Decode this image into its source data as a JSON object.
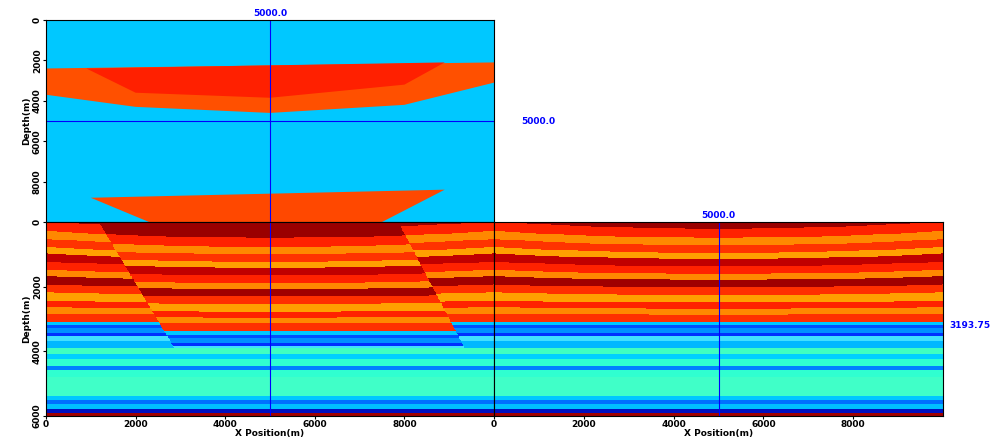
{
  "chart_data": {
    "type": "cube",
    "layers": {
      "tops": [
        -400,
        0,
        300,
        550,
        800,
        1000,
        1250,
        1500,
        1700,
        1950,
        2200,
        2450,
        2650,
        2850,
        3100,
        3200,
        3300,
        3450,
        3550,
        3700,
        3900,
        4100,
        4250,
        4450,
        4600,
        4800,
        5400,
        5500,
        5650,
        5800,
        5900
      ],
      "colors": [
        "#9a0000",
        "#ff2200",
        "#ff8800",
        "#ff3300",
        "#ffa000",
        "#c00000",
        "#ff2200",
        "#ff8800",
        "#a00000",
        "#ff3000",
        "#ffa000",
        "#ff2200",
        "#ff8800",
        "#ff3000",
        "#00c8ff",
        "#0050ff",
        "#0090ff",
        "#0030ff",
        "#40e0ff",
        "#00b8ff",
        "#40ffc0",
        "#00d0ff",
        "#30ffd0",
        "#0080ff",
        "#30ffd0",
        "#40ffc8",
        "#00c8ff",
        "#0070ff",
        "#00c0ff",
        "#0010c0",
        "#a00000"
      ]
    },
    "sag": 250,
    "sag_center": 5000,
    "sag_width": 5000,
    "sag_base": 3200,
    "panels": {
      "top": {
        "ylabel": "Depth(m)",
        "xlim": [
          0,
          10000
        ],
        "ylim": [
          10000,
          0
        ],
        "yticks": [
          0,
          2000,
          4000,
          6000,
          8000
        ],
        "tick_labels": "y",
        "color": "#00c8ff",
        "shapes": [
          {
            "color": "#ff5000",
            "points": [
              [
                0,
                2400
              ],
              [
                10000,
                2100
              ],
              [
                10000,
                3100
              ],
              [
                8000,
                4200
              ],
              [
                5000,
                4600
              ],
              [
                2000,
                4300
              ],
              [
                0,
                3700
              ]
            ]
          },
          {
            "color": "#ff2000",
            "points": [
              [
                900,
                2400
              ],
              [
                8900,
                2100
              ],
              [
                8000,
                3200
              ],
              [
                5000,
                3850
              ],
              [
                2000,
                3600
              ]
            ]
          },
          {
            "color": "#ff4800",
            "points": [
              [
                1000,
                8800
              ],
              [
                8900,
                8400
              ],
              [
                7500,
                10000
              ],
              [
                2300,
                10000
              ]
            ]
          }
        ]
      },
      "front": {
        "ylabel": "Depth(m)",
        "xlabel": "X Position(m)",
        "xlim": [
          0,
          10000
        ],
        "ylim": [
          6000,
          0
        ],
        "xticks": [
          0,
          2000,
          4000,
          6000,
          8000
        ],
        "yticks": [
          0,
          2000,
          4000,
          6000
        ],
        "faults": [
          [
            [
              1380,
              500
            ],
            [
              2770,
              3700
            ]
          ],
          [
            [
              7860,
              0
            ],
            [
              9460,
              4200
            ]
          ]
        ],
        "block_shift": 300,
        "block_base": 3900
      },
      "side": {
        "xlabel": "X Position(m)",
        "xlim": [
          0,
          10000
        ],
        "ylim": [
          6000,
          0
        ],
        "xticks": [
          0,
          2000,
          4000,
          6000,
          8000
        ],
        "tick_labels": "x"
      }
    },
    "crosshair": {
      "x": {
        "value": 5000,
        "label": "5000.0"
      },
      "y": {
        "value": 5000,
        "label": "5000.0"
      },
      "depth": {
        "value": 3193.75,
        "label": "3193.75"
      },
      "color": "#0000ff"
    }
  }
}
